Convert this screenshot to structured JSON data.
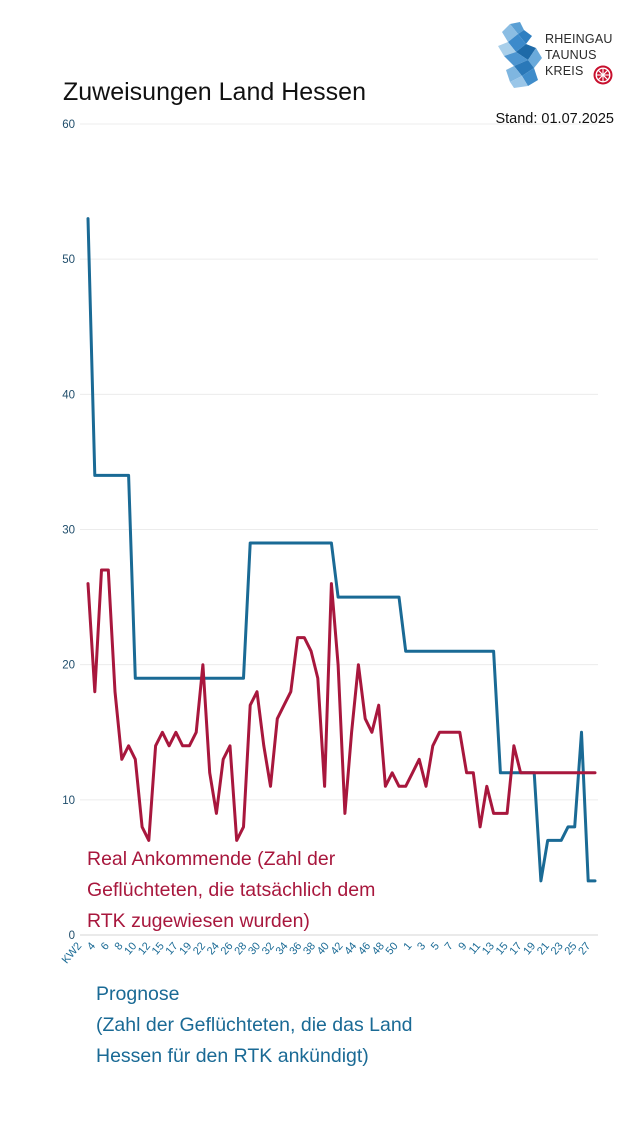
{
  "logo": {
    "lines": [
      "RHEINGAU",
      "TAUNUS",
      "KREIS"
    ],
    "icon": "lion-icon",
    "emblem": "wheel-emblem-icon"
  },
  "chart_data": {
    "type": "line",
    "title": "Zuweisungen Land Hessen",
    "subtitle": "Stand: 01.07.2025",
    "xlabel": "",
    "ylabel": "",
    "ylim": [
      0,
      60
    ],
    "yticks": [
      0,
      10,
      20,
      30,
      40,
      50,
      60
    ],
    "grid": true,
    "xtick_labels": [
      "KW2",
      "4",
      "6",
      "8",
      "10",
      "12",
      "15",
      "17",
      "19",
      "22",
      "24",
      "26",
      "28",
      "30",
      "32",
      "34",
      "36",
      "38",
      "40",
      "42",
      "44",
      "46",
      "48",
      "50",
      "1",
      "3",
      "5",
      "7",
      "9",
      "11",
      "13",
      "15",
      "17",
      "19",
      "21",
      "23",
      "25",
      "27"
    ],
    "series": [
      {
        "name": "Real Ankommende (Zahl der Geflüchteten, die tatsächlich dem RTK zugewiesen wurden)",
        "name_lines": [
          "Real Ankommende (Zahl der",
          "Geflüchteten, die tatsächlich dem",
          "RTK zugewiesen wurden)"
        ],
        "color": "#a8173d",
        "values": [
          26,
          18,
          27,
          27,
          18,
          13,
          14,
          13,
          8,
          7,
          14,
          15,
          14,
          15,
          14,
          14,
          15,
          20,
          12,
          9,
          13,
          14,
          7,
          8,
          17,
          18,
          14,
          11,
          16,
          17,
          18,
          22,
          22,
          21,
          19,
          11,
          26,
          20,
          9,
          15,
          20,
          16,
          15,
          17,
          11,
          12,
          11,
          11,
          12,
          13,
          11,
          14,
          15,
          15,
          15,
          15,
          12,
          12,
          8,
          11,
          9,
          9,
          9,
          14,
          12,
          12,
          12,
          12,
          12,
          12,
          12,
          12,
          12,
          12,
          12,
          12
        ]
      },
      {
        "name": "Prognose (Zahl der Geflüchteten, die das Land Hessen für den RTK ankündigt)",
        "name_lines": [
          "Prognose",
          "(Zahl der Geflüchteten, die das Land",
          "Hessen für den RTK ankündigt)"
        ],
        "color": "#1a6a95",
        "values": [
          53,
          34,
          34,
          34,
          34,
          34,
          34,
          19,
          19,
          19,
          19,
          19,
          19,
          19,
          19,
          19,
          19,
          19,
          19,
          19,
          19,
          19,
          19,
          19,
          29,
          29,
          29,
          29,
          29,
          29,
          29,
          29,
          29,
          29,
          29,
          29,
          29,
          25,
          25,
          25,
          25,
          25,
          25,
          25,
          25,
          25,
          25,
          21,
          21,
          21,
          21,
          21,
          21,
          21,
          21,
          21,
          21,
          21,
          21,
          21,
          21,
          12,
          12,
          12,
          12,
          12,
          12,
          4,
          7,
          7,
          7,
          8,
          8,
          15,
          4,
          4
        ]
      }
    ]
  }
}
